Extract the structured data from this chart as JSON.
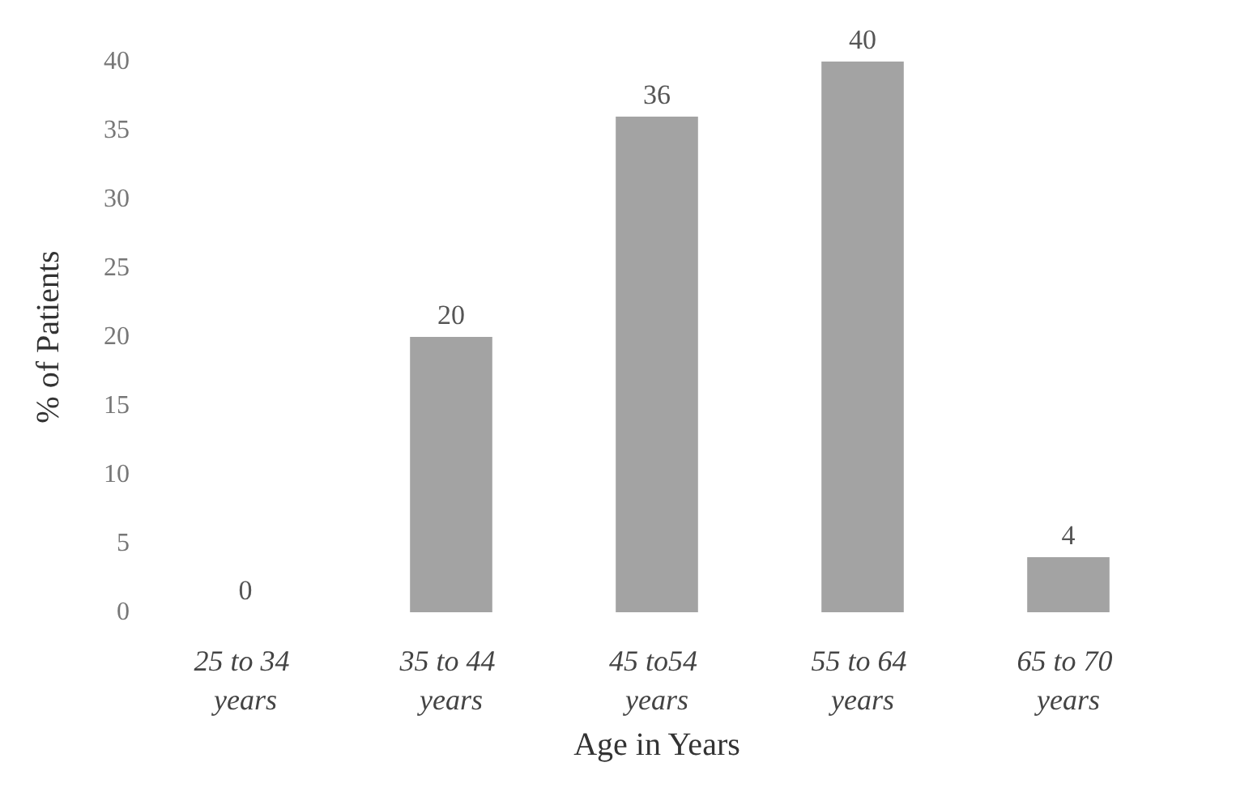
{
  "chart_data": {
    "type": "bar",
    "xlabel": "Age in Years",
    "ylabel": "% of Patients",
    "categories": [
      "25 to 34 years",
      "35 to 44 years",
      "45 to54 years",
      "55 to 64 years",
      "65 to 70 years"
    ],
    "values": [
      0,
      20,
      36,
      40,
      4
    ],
    "color": "#a3a3a3",
    "data_labels": true,
    "ylim": [
      0,
      40
    ],
    "yticks": [
      0,
      5,
      10,
      15,
      20,
      25,
      30,
      35,
      40
    ],
    "grid": false
  }
}
